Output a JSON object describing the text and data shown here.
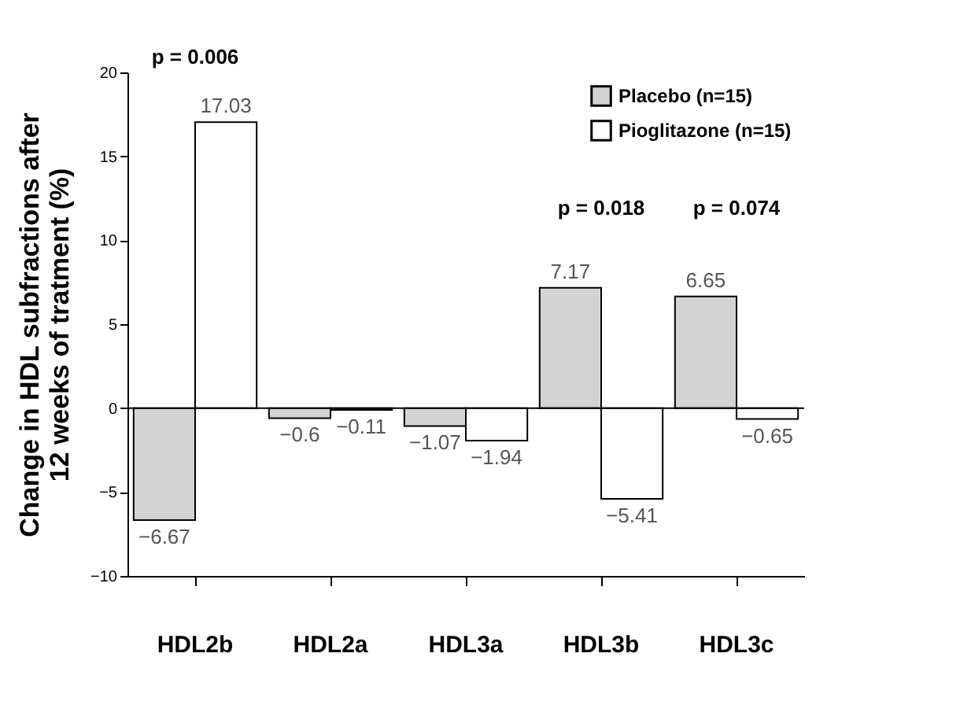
{
  "chart_data": {
    "type": "bar",
    "ylabel": "Change in HDL subfractions after\n12 weeks of tratment  (%)",
    "categories": [
      "HDL2b",
      "HDL2a",
      "HDL3a",
      "HDL3b",
      "HDL3c"
    ],
    "series": [
      {
        "name": "Placebo (n=15)",
        "color": "#d3d3d3",
        "values": [
          -6.67,
          -0.6,
          -1.07,
          7.17,
          6.65
        ],
        "value_labels": [
          "−6.67",
          "−0.6",
          "−1.07",
          "7.17",
          "6.65"
        ]
      },
      {
        "name": "Pioglitazone (n=15)",
        "color": "#ffffff",
        "values": [
          17.03,
          -0.11,
          -1.94,
          -5.41,
          -0.65
        ],
        "value_labels": [
          "17.03",
          "−0.11",
          "−1.94",
          "−5.41",
          "−0.65"
        ]
      }
    ],
    "ylim": [
      -10,
      20
    ],
    "yticks": [
      -10,
      -5,
      0,
      5,
      10,
      15,
      20
    ],
    "annotations": [
      "p = 0.006",
      "p = 0.018",
      "p = 0.074"
    ],
    "ref_lines": [
      {
        "axis": "y",
        "value": 0,
        "color": "#000000",
        "line_style": "solid"
      }
    ],
    "legend": "top right"
  }
}
